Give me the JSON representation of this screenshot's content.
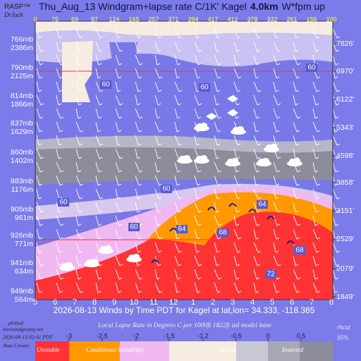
{
  "chart_data": {
    "type": "windgram",
    "brand": [
      "RASP™",
      "DrJack"
    ],
    "title": [
      "Thu_Aug_13 Windgram+lapse rate C/1K'  Kagel",
      "4.0km",
      "W*fpm up"
    ],
    "updraft_values": [
      0,
      75,
      69,
      87,
      124,
      165,
      257,
      371,
      394,
      417,
      412,
      378,
      332,
      261,
      156,
      100
    ],
    "categories": [
      "5",
      "6",
      "7",
      "8",
      "9",
      "10",
      "11",
      "12",
      "1",
      "2",
      "3",
      "4",
      "5",
      "6",
      "7",
      "8"
    ],
    "pressure_levels": [
      "766mb",
      "790mb",
      "814mb",
      "837mb",
      "860mb",
      "883mb",
      "905mb",
      "926mb",
      "941mb",
      "949mb"
    ],
    "heights_m": [
      "2386m",
      "2125m",
      "1866m",
      "1629m",
      "1402m",
      "1176m",
      "961m",
      "771m",
      "634m",
      "564m"
    ],
    "heights_ft": [
      "7826'",
      "6970'",
      "6122'",
      "5343'",
      "4598'",
      "3858'",
      "3151'",
      "2529'",
      "2079'",
      "1849'"
    ],
    "contour_labels": [
      60,
      60,
      60,
      60,
      60,
      60,
      64,
      68,
      64,
      68,
      72
    ],
    "x_label": "2026-08-13 Winds by Time PDT for Kagel at lat,lon= 34.333, -118.385",
    "footer": {
      "left": [
        "plotted",
        "bin/windgramtj.net",
        "2026-08-13 02:41 PDT",
        "Alan Crouse"
      ],
      "center": "Local Lapse Rate in Degrees C per 1000ft   1822ft asl model base",
      "right": [
        "rhcut",
        "95%"
      ]
    },
    "legend": {
      "ticks": [
        -3,
        -2.5,
        -2,
        -1.5,
        -1.2,
        -0.5,
        0,
        0.5
      ],
      "labels": [
        "Unstable",
        "Conditional Instability",
        "Stable",
        "Inverted"
      ]
    }
  }
}
